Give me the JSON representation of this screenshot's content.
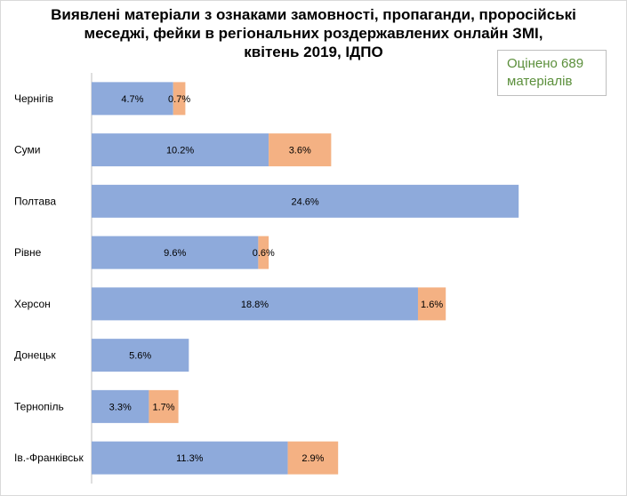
{
  "chart_data": {
    "type": "bar",
    "orientation": "horizontal",
    "stacked": true,
    "title_lines": [
      "Виявлені матеріали з ознаками замовності, пропаганди, проросійські",
      "меседжі, фейки в регіональних роздержавлених онлайн ЗМІ,",
      "квітень 2019, ІДПО"
    ],
    "annotation_lines": [
      "Оцінено 689",
      "матеріалів"
    ],
    "categories": [
      "Чернігів",
      "Суми",
      "Полтава",
      "Рівне",
      "Херсон",
      "Донецьк",
      "Тернопіль",
      "Ів.-Франківськ"
    ],
    "series": [
      {
        "color": "#8eaadb",
        "values": [
          4.7,
          10.2,
          24.6,
          9.6,
          18.8,
          5.6,
          3.3,
          11.3
        ],
        "labels": [
          "4.7%",
          "10.2%",
          "24.6%",
          "9.6%",
          "18.8%",
          "5.6%",
          "3.3%",
          "11.3%"
        ]
      },
      {
        "color": "#f4b183",
        "values": [
          0.7,
          3.6,
          null,
          0.6,
          1.6,
          null,
          1.7,
          2.9
        ],
        "labels": [
          "0.7%",
          "3.6%",
          null,
          "0.6%",
          "1.6%",
          null,
          "1.7%",
          "2.9%"
        ]
      }
    ],
    "xlim": [
      0,
      25
    ],
    "grid": false,
    "legend": "none"
  }
}
